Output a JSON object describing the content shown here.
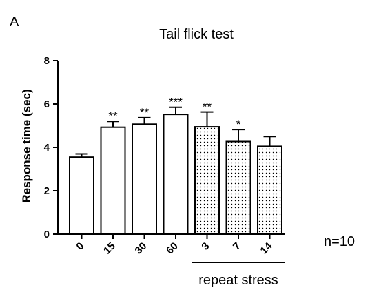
{
  "panel_label": "A",
  "n_label": "n=10",
  "chart_data": {
    "type": "bar",
    "title": "Tail flick test",
    "xlabel": "",
    "ylabel": "Response time (sec)",
    "ylim": [
      0,
      8
    ],
    "yticks": [
      "0",
      "2",
      "4",
      "6",
      "8"
    ],
    "categories": [
      "0",
      "15",
      "30",
      "60",
      "3",
      "7",
      "14"
    ],
    "values": [
      3.55,
      4.93,
      5.07,
      5.52,
      4.95,
      4.27,
      4.05
    ],
    "errors": [
      0.15,
      0.27,
      0.3,
      0.33,
      0.68,
      0.55,
      0.45
    ],
    "significance": [
      "",
      "**",
      "**",
      "***",
      "**",
      "*",
      ""
    ],
    "fill": [
      "none",
      "none",
      "none",
      "none",
      "dotted",
      "dotted",
      "dotted"
    ],
    "group_label": "repeat stress",
    "grid": false,
    "legend": "none"
  }
}
